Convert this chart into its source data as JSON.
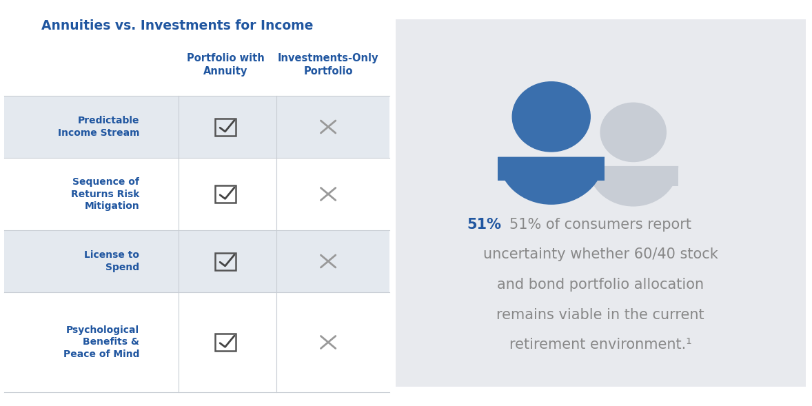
{
  "title": "Annuities vs. Investments for Income",
  "title_color": "#2056a0",
  "title_fontsize": 13.5,
  "col_headers": [
    "Portfolio with\nAnnuity",
    "Investments-Only\nPortfolio"
  ],
  "col_header_color": "#2056a0",
  "col_header_fontsize": 10.5,
  "rows": [
    "Predictable\nIncome Stream",
    "Sequence of\nReturns Risk\nMitigation",
    "License to\nSpend",
    "Psychological\nBenefits &\nPeace of Mind"
  ],
  "row_label_color": "#2056a0",
  "row_label_fontsize": 10,
  "shaded_rows": [
    0,
    2
  ],
  "row_shade_color": "#e4e9ef",
  "check_color": "#555555",
  "x_color": "#999999",
  "bg_color": "#ffffff",
  "right_panel_bg": "#e8eaee",
  "stat_percent": "51%",
  "stat_percent_color": "#2056a0",
  "stat_line1": "51% of consumers report",
  "stat_line2": "uncertainty whether 60/40 stock",
  "stat_line3": "and bond portfolio allocation",
  "stat_line4": "remains viable in the current",
  "stat_line5": "retirement environment.",
  "stat_sup": "1",
  "stat_text_color": "#888888",
  "stat_fontsize": 15,
  "person1_color": "#3a6fad",
  "person2_color": "#c8cdd5"
}
